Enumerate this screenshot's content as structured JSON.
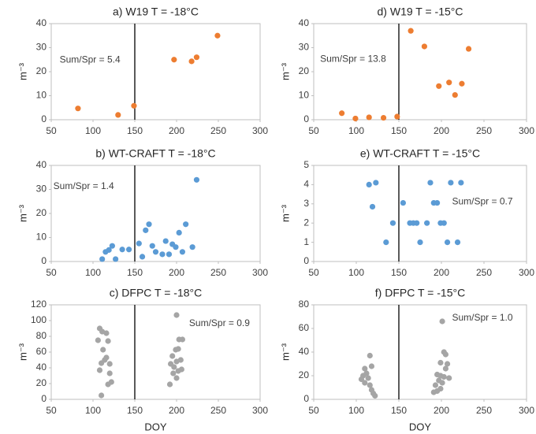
{
  "chart_data": [
    {
      "type": "scatter",
      "title": "a) W19 T = -18°C",
      "y_label": "m⁻³",
      "annotation": "Sum/Spr = 5.4",
      "color": "#ed7d31",
      "x": [
        82,
        130,
        149,
        197,
        218,
        224,
        249
      ],
      "values": [
        4.7,
        2,
        5.8,
        25,
        24.3,
        26,
        35
      ],
      "xlim": [
        50,
        300
      ],
      "xticks": [
        50,
        100,
        150,
        200,
        250,
        300
      ],
      "ylim": [
        0,
        40
      ],
      "yticks": [
        0,
        10,
        20,
        30,
        40
      ],
      "vline": 150
    },
    {
      "type": "scatter",
      "title": "d) W19 T = -15°C",
      "y_label": "m⁻³",
      "annotation": "Sum/Spr = 13.8",
      "color": "#ed7d31",
      "x": [
        83,
        99,
        115,
        132,
        148,
        164,
        180,
        197,
        209,
        216,
        224,
        232
      ],
      "values": [
        2.7,
        0.5,
        1,
        0.8,
        1.3,
        37,
        30.5,
        14,
        15.5,
        10.3,
        15,
        29.5
      ],
      "xlim": [
        50,
        300
      ],
      "xticks": [
        50,
        100,
        150,
        200,
        250,
        300
      ],
      "ylim": [
        0,
        40
      ],
      "yticks": [
        0,
        10,
        20,
        30,
        40
      ],
      "vline": 150
    },
    {
      "type": "scatter",
      "title": "b) WT-CRAFT T = -18°C",
      "y_label": "m⁻³",
      "annotation": "Sum/Spr = 1.4",
      "color": "#5b9bd5",
      "x": [
        111,
        115,
        119,
        123,
        127,
        135,
        143,
        155,
        159,
        163,
        167,
        171,
        175,
        183,
        187,
        191,
        195,
        199,
        203,
        207,
        211,
        219,
        224
      ],
      "values": [
        1,
        4,
        4.8,
        6.5,
        1,
        5,
        5,
        7.5,
        2,
        13,
        15.5,
        6.5,
        4,
        3,
        8.5,
        3,
        7.2,
        6,
        12,
        4,
        15.5,
        6,
        34
      ],
      "xlim": [
        50,
        300
      ],
      "xticks": [
        50,
        100,
        150,
        200,
        250,
        300
      ],
      "ylim": [
        0,
        40
      ],
      "yticks": [
        0,
        10,
        20,
        30,
        40
      ],
      "vline": 150
    },
    {
      "type": "scatter",
      "title": "e) WT-CRAFT T = -15°C",
      "y_label": "m⁻³",
      "annotation": "Sum/Spr = 0.7",
      "color": "#5b9bd5",
      "x": [
        115,
        119,
        123,
        135,
        143,
        155,
        163,
        167,
        171,
        175,
        183,
        187,
        191,
        195,
        199,
        203,
        207,
        211,
        219,
        223
      ],
      "values": [
        4,
        2.85,
        4.1,
        1,
        2,
        3.05,
        2,
        2,
        2,
        1,
        2,
        4.1,
        3.05,
        3.05,
        2,
        2,
        1,
        4.1,
        1,
        4.1
      ],
      "xlim": [
        50,
        300
      ],
      "xticks": [
        50,
        100,
        150,
        200,
        250,
        300
      ],
      "ylim": [
        0,
        5
      ],
      "yticks": [
        0,
        1,
        2,
        3,
        4,
        5
      ],
      "vline": 150
    },
    {
      "type": "scatter",
      "title": "c) DFPC T = -18°C",
      "y_label": "m⁻³",
      "x_label": "DOY",
      "annotation": "Sum/Spr = 0.9",
      "color": "#a5a5a5",
      "x": [
        108,
        111,
        116,
        106,
        118,
        112,
        116,
        114,
        110,
        120,
        108,
        120,
        122,
        118,
        110,
        200,
        203,
        207,
        199,
        202,
        195,
        205,
        200,
        193,
        197,
        206,
        202,
        196,
        200,
        192
      ],
      "values": [
        90,
        86,
        84,
        75,
        74,
        63,
        53,
        50,
        46,
        45,
        37,
        33,
        22,
        19,
        5,
        107,
        76,
        76,
        63,
        64,
        55,
        50,
        48,
        45,
        41,
        38,
        36,
        33,
        27,
        19
      ],
      "xlim": [
        50,
        300
      ],
      "xticks": [
        50,
        100,
        150,
        200,
        250,
        300
      ],
      "ylim": [
        0,
        120
      ],
      "yticks": [
        0,
        20,
        40,
        60,
        80,
        100,
        120
      ],
      "vline": 150
    },
    {
      "type": "scatter",
      "title": "f) DFPC T = -15°C",
      "y_label": "m⁻³",
      "x_label": "DOY",
      "annotation": "Sum/Spr = 1.0",
      "color": "#a5a5a5",
      "x": [
        116,
        110,
        118,
        112,
        108,
        114,
        106,
        110,
        116,
        118,
        120,
        122,
        201,
        203,
        205,
        199,
        207,
        205,
        195,
        199,
        203,
        209,
        197,
        201,
        193,
        199,
        195,
        191
      ],
      "values": [
        37,
        26,
        28,
        22,
        20,
        18,
        17,
        14,
        12,
        8,
        5,
        3,
        66,
        40,
        38,
        31,
        30,
        26,
        21,
        20,
        19,
        18,
        16,
        14,
        12,
        9,
        7,
        6
      ],
      "xlim": [
        50,
        300
      ],
      "xticks": [
        50,
        100,
        150,
        200,
        250,
        300
      ],
      "ylim": [
        0,
        80
      ],
      "yticks": [
        0,
        20,
        40,
        60,
        80
      ],
      "vline": 150
    }
  ]
}
